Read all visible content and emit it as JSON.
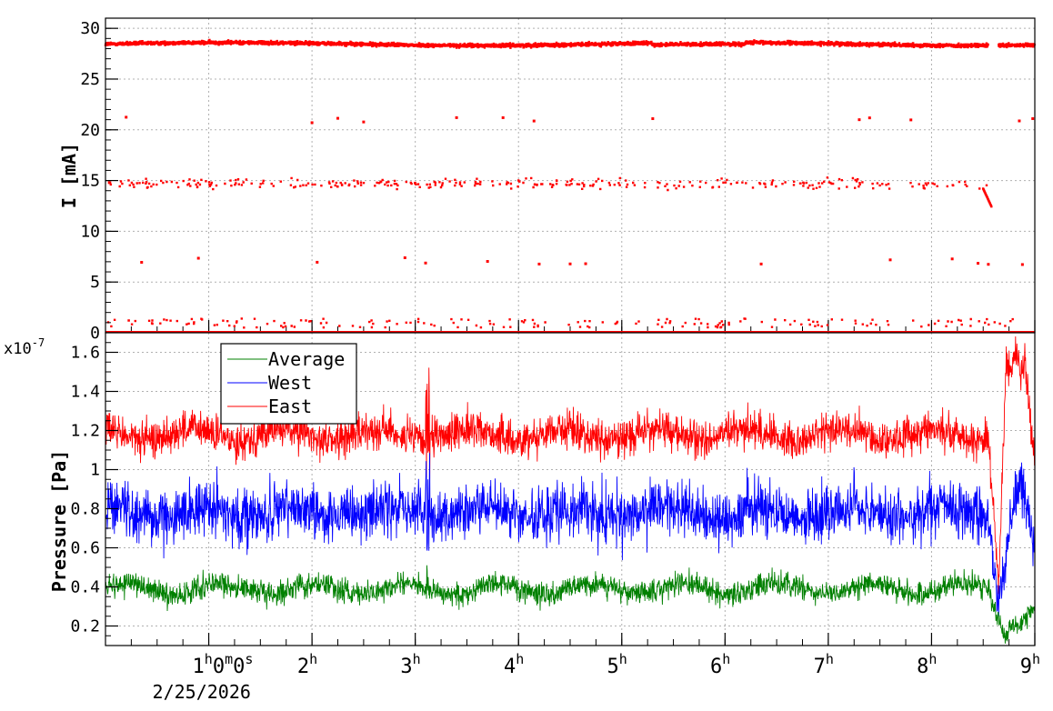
{
  "chart_data": [
    {
      "type": "scatter",
      "ylabel": "I [mA]",
      "ylim": [
        0,
        31
      ],
      "yticks": [
        0,
        5,
        10,
        15,
        20,
        25,
        30
      ],
      "grid": true,
      "series_color": "#ff0000",
      "bands": [
        {
          "level": 28.5,
          "description_values": "dense band near 28.5 mA"
        },
        {
          "level": 14.7,
          "description_values": "sparse band near 14.7 mA"
        },
        {
          "level": 0.0,
          "description_values": "dense band at 0 mA"
        }
      ],
      "sparse_points_21": [
        0.2,
        2.0,
        2.25,
        2.5,
        3.4,
        3.85,
        4.15,
        5.3,
        7.3,
        7.4,
        7.8,
        8.85,
        8.98
      ],
      "sparse_points_7": [
        0.35,
        0.9,
        2.05,
        2.9,
        3.1,
        3.7,
        4.2,
        4.5,
        4.65,
        6.35,
        7.6,
        8.2,
        8.45,
        8.55,
        8.88
      ],
      "upper_gap_hours": [
        8.55,
        8.65
      ]
    },
    {
      "type": "line",
      "ylabel": "Pressure [Pa]",
      "scale_label": "x10",
      "scale_exponent": "-7",
      "ylim": [
        0.1,
        1.7
      ],
      "yticks": [
        0.2,
        0.4,
        0.6,
        0.8,
        1,
        1.2,
        1.4,
        1.6
      ],
      "ytick_labels": [
        "0.2",
        "0.4",
        "0.6",
        "0.8",
        "1",
        "1.2",
        "1.4",
        "1.6"
      ],
      "grid": true,
      "legend_position": "top-left",
      "series": [
        {
          "name": "Average",
          "color": "#008000",
          "mean": 0.39,
          "noise": 0.05
        },
        {
          "name": "West",
          "color": "#0000ff",
          "mean": 0.78,
          "noise": 0.12
        },
        {
          "name": "East",
          "color": "#ff0000",
          "mean": 1.18,
          "noise": 0.08
        }
      ],
      "event_hours": [
        3.1,
        8.6,
        8.9
      ]
    }
  ],
  "xaxis": {
    "xlim_hours": [
      0,
      9
    ],
    "first_tick": {
      "h": "1",
      "m": "0",
      "s": "0",
      "date": "2/25/2026"
    },
    "ticks": [
      {
        "hour": 2,
        "label": "2"
      },
      {
        "hour": 3,
        "label": "3"
      },
      {
        "hour": 4,
        "label": "4"
      },
      {
        "hour": 5,
        "label": "5"
      },
      {
        "hour": 6,
        "label": "6"
      },
      {
        "hour": 7,
        "label": "7"
      },
      {
        "hour": 8,
        "label": "8"
      },
      {
        "hour": 9,
        "label": "9"
      }
    ],
    "unit_h": "h",
    "unit_m": "m",
    "unit_s": "s"
  }
}
